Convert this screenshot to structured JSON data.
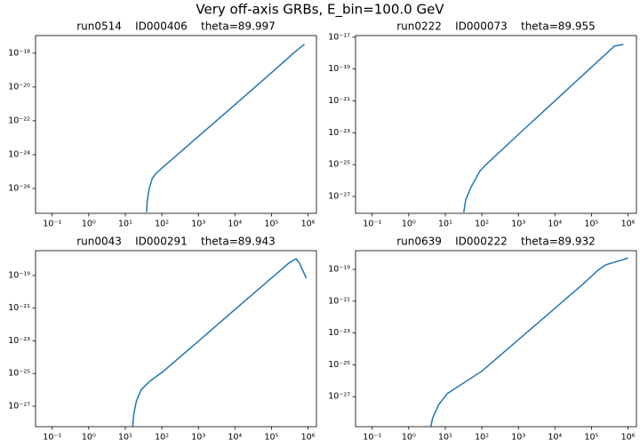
{
  "title": "Very off-axis GRBs, E_bin=100.0 GeV",
  "chart_data": [
    {
      "type": "line",
      "title": "run0514    ID000406    theta=89.997",
      "log_x": true,
      "log_y": true,
      "color": "#1f77b4",
      "x": [
        38,
        40,
        45,
        55,
        70,
        100,
        1000,
        10000,
        100000,
        400000,
        800000
      ],
      "values": [
        4e-28,
        2e-27,
        1e-26,
        4e-26,
        8e-26,
        1.6e-25,
        1.2e-23,
        9e-22,
        7e-20,
        1e-18,
        3.4e-18
      ],
      "xlim": [
        0.035,
        1700000.0
      ],
      "ylim": [
        3.4e-28,
        1.1e-17
      ],
      "xticks": [
        {
          "value": 0.1,
          "label": "10⁻¹"
        },
        {
          "value": 1,
          "label": "10⁰"
        },
        {
          "value": 10,
          "label": "10¹"
        },
        {
          "value": 100,
          "label": "10²"
        },
        {
          "value": 1000,
          "label": "10³"
        },
        {
          "value": 10000,
          "label": "10⁴"
        },
        {
          "value": 100000,
          "label": "10⁵"
        },
        {
          "value": 1000000,
          "label": "10⁶"
        }
      ],
      "yticks": [
        {
          "value": 1e-26,
          "label": "10⁻²⁶"
        },
        {
          "value": 1e-24,
          "label": "10⁻²⁴"
        },
        {
          "value": 1e-22,
          "label": "10⁻²²"
        },
        {
          "value": 1e-20,
          "label": "10⁻²⁰"
        },
        {
          "value": 1e-18,
          "label": "10⁻¹⁸"
        }
      ]
    },
    {
      "type": "line",
      "title": "run0222    ID000073    theta=89.955",
      "log_x": true,
      "log_y": true,
      "color": "#1f77b4",
      "x": [
        32,
        36,
        51,
        89,
        130,
        1000,
        10000,
        100000,
        430000,
        750000
      ],
      "values": [
        1e-28,
        6e-28,
        4e-27,
        4e-26,
        1e-25,
        7.8e-24,
        1e-21,
        1.3e-19,
        2.8e-18,
        3.5e-18
      ],
      "xlim": [
        0.035,
        1700000.0
      ],
      "ylim": [
        8.7e-29,
        1.26e-17
      ],
      "xticks": [
        {
          "value": 0.1,
          "label": "10⁻¹"
        },
        {
          "value": 1,
          "label": "10⁰"
        },
        {
          "value": 10,
          "label": "10¹"
        },
        {
          "value": 100,
          "label": "10²"
        },
        {
          "value": 1000,
          "label": "10³"
        },
        {
          "value": 10000,
          "label": "10⁴"
        },
        {
          "value": 100000,
          "label": "10⁵"
        },
        {
          "value": 1000000,
          "label": "10⁶"
        }
      ],
      "yticks": [
        {
          "value": 1e-27,
          "label": "10⁻²⁷"
        },
        {
          "value": 1e-25,
          "label": "10⁻²⁵"
        },
        {
          "value": 1e-23,
          "label": "10⁻²³"
        },
        {
          "value": 1e-21,
          "label": "10⁻²¹"
        },
        {
          "value": 1e-19,
          "label": "10⁻¹⁹"
        },
        {
          "value": 1e-17,
          "label": "10⁻¹⁷"
        }
      ]
    },
    {
      "type": "line",
      "title": "run0043    ID000291    theta=89.943",
      "log_x": true,
      "log_y": true,
      "color": "#1f77b4",
      "x": [
        16,
        17,
        20,
        27,
        44,
        107,
        1000,
        10000,
        100000,
        300000,
        470000,
        580000,
        900000
      ],
      "values": [
        6e-29,
        3e-28,
        2e-27,
        1e-26,
        3e-26,
        1.3e-25,
        9.5e-24,
        8.3e-22,
        7e-20,
        5.8e-19,
        1.07e-18,
        5.8e-19,
        6.9e-20
      ],
      "xlim": [
        0.035,
        1700000.0
      ],
      "ylim": [
        5.6e-29,
        3.3e-18
      ],
      "xticks": [
        {
          "value": 0.1,
          "label": "10⁻¹"
        },
        {
          "value": 1,
          "label": "10⁰"
        },
        {
          "value": 10,
          "label": "10¹"
        },
        {
          "value": 100,
          "label": "10²"
        },
        {
          "value": 1000,
          "label": "10³"
        },
        {
          "value": 10000,
          "label": "10⁴"
        },
        {
          "value": 100000,
          "label": "10⁵"
        },
        {
          "value": 1000000,
          "label": "10⁶"
        }
      ],
      "yticks": [
        {
          "value": 1e-27,
          "label": "10⁻²⁷"
        },
        {
          "value": 1e-25,
          "label": "10⁻²⁵"
        },
        {
          "value": 1e-23,
          "label": "10⁻²³"
        },
        {
          "value": 1e-21,
          "label": "10⁻²¹"
        },
        {
          "value": 1e-19,
          "label": "10⁻¹⁹"
        }
      ]
    },
    {
      "type": "line",
      "title": "run0639    ID000222    theta=89.932",
      "log_x": true,
      "log_y": true,
      "color": "#1f77b4",
      "x": [
        4,
        4.5,
        6.6,
        11.5,
        100,
        1000,
        10000,
        60000,
        150000,
        240000,
        740000,
        1000000
      ],
      "values": [
        1.3e-29,
        4.5e-29,
        3.2e-28,
        1.6e-27,
        4e-26,
        3.8e-24,
        3.6e-22,
        1.26e-20,
        8.7e-20,
        1.9e-19,
        4.1e-19,
        5.2e-19
      ],
      "xlim": [
        0.035,
        1700000.0
      ],
      "ylim": [
        1.3e-29,
        1.5e-18
      ],
      "xticks": [
        {
          "value": 0.1,
          "label": "10⁻¹"
        },
        {
          "value": 1,
          "label": "10⁰"
        },
        {
          "value": 10,
          "label": "10¹"
        },
        {
          "value": 100,
          "label": "10²"
        },
        {
          "value": 1000,
          "label": "10³"
        },
        {
          "value": 10000,
          "label": "10⁴"
        },
        {
          "value": 100000,
          "label": "10⁵"
        },
        {
          "value": 1000000,
          "label": "10⁶"
        }
      ],
      "yticks": [
        {
          "value": 1e-27,
          "label": "10⁻²⁷"
        },
        {
          "value": 1e-25,
          "label": "10⁻²⁵"
        },
        {
          "value": 1e-23,
          "label": "10⁻²³"
        },
        {
          "value": 1e-21,
          "label": "10⁻²¹"
        },
        {
          "value": 1e-19,
          "label": "10⁻¹⁹"
        }
      ]
    }
  ]
}
